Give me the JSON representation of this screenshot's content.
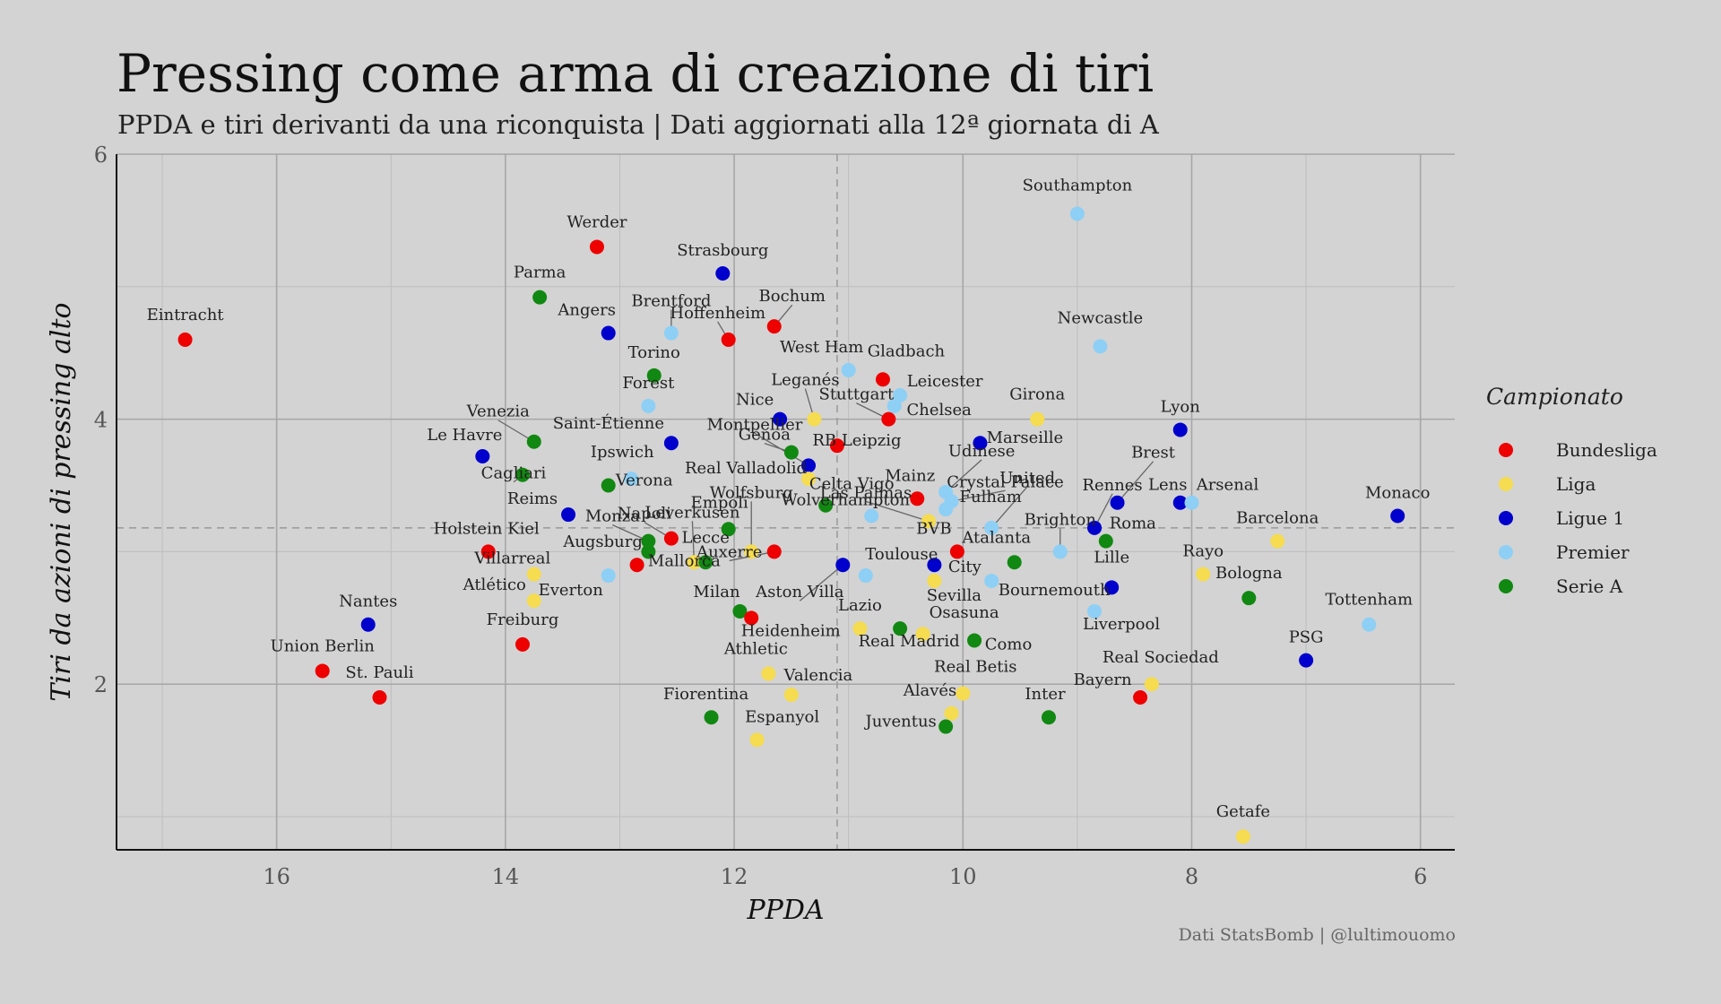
{
  "title": "Pressing come arma di creazione di tiri",
  "subtitle": "PPDA e tiri derivanti da una riconquista | Dati aggiornati alla 12ª giornata di A",
  "caption": "Dati StatsBomb | @lultimouomo",
  "legend": {
    "title": "Campionato",
    "items": [
      {
        "label": "Bundesliga",
        "color": "#ee0000"
      },
      {
        "label": "Liga",
        "color": "#f5dc50"
      },
      {
        "label": "Ligue 1",
        "color": "#0000cc"
      },
      {
        "label": "Premier",
        "color": "#8ecff5"
      },
      {
        "label": "Serie A",
        "color": "#118811"
      }
    ]
  },
  "chart_data": {
    "type": "scatter",
    "xlabel": "PPDA",
    "ylabel": "Tiri da azioni di pressing alto",
    "x_reversed": true,
    "xlim": [
      17.4,
      5.7
    ],
    "ylim": [
      0.75,
      6
    ],
    "x_ticks": [
      16,
      14,
      12,
      10,
      8,
      6
    ],
    "y_ticks": [
      2,
      4,
      6
    ],
    "reference_lines": {
      "x": 11.1,
      "y": 3.18
    },
    "grid": true,
    "legend_position": "right",
    "points": [
      {
        "team": "Eintracht",
        "league": "Bundesliga",
        "x": 16.8,
        "y": 4.6
      },
      {
        "team": "Union Berlin",
        "league": "Bundesliga",
        "x": 15.6,
        "y": 2.1
      },
      {
        "team": "St. Pauli",
        "league": "Bundesliga",
        "x": 15.1,
        "y": 1.9
      },
      {
        "team": "Nantes",
        "league": "Ligue 1",
        "x": 15.2,
        "y": 2.45
      },
      {
        "team": "Le Havre",
        "league": "Ligue 1",
        "x": 14.2,
        "y": 3.72
      },
      {
        "team": "Holstein Kiel",
        "league": "Bundesliga",
        "x": 14.15,
        "y": 3.0
      },
      {
        "team": "Freiburg",
        "league": "Bundesliga",
        "x": 13.85,
        "y": 2.3
      },
      {
        "team": "Villarreal",
        "league": "Liga",
        "x": 13.75,
        "y": 2.83
      },
      {
        "team": "Atlético",
        "league": "Liga",
        "x": 13.75,
        "y": 2.63
      },
      {
        "team": "Cagliari",
        "league": "Serie A",
        "x": 13.85,
        "y": 3.58
      },
      {
        "team": "Venezia",
        "league": "Serie A",
        "x": 13.75,
        "y": 3.83
      },
      {
        "team": "Parma",
        "league": "Serie A",
        "x": 13.7,
        "y": 4.92
      },
      {
        "team": "Reims",
        "league": "Ligue 1",
        "x": 13.45,
        "y": 3.28
      },
      {
        "team": "Werder",
        "league": "Bundesliga",
        "x": 13.2,
        "y": 5.3
      },
      {
        "team": "Angers",
        "league": "Ligue 1",
        "x": 13.1,
        "y": 4.65
      },
      {
        "team": "Verona",
        "league": "Serie A",
        "x": 13.1,
        "y": 3.5
      },
      {
        "team": "Everton",
        "league": "Premier",
        "x": 13.1,
        "y": 2.82
      },
      {
        "team": "Ipswich",
        "league": "Premier",
        "x": 12.9,
        "y": 3.55
      },
      {
        "team": "Augsburg",
        "league": "Bundesliga",
        "x": 12.85,
        "y": 2.9
      },
      {
        "team": "Mallorca",
        "league": "Serie A",
        "x": 12.75,
        "y": 3.0
      },
      {
        "team": "Monza",
        "league": "Serie A",
        "x": 12.75,
        "y": 3.08
      },
      {
        "team": "Forest",
        "league": "Premier",
        "x": 12.75,
        "y": 4.1
      },
      {
        "team": "Torino",
        "league": "Serie A",
        "x": 12.7,
        "y": 4.33
      },
      {
        "team": "Napoli",
        "league": "Bundesliga",
        "x": 12.55,
        "y": 3.1
      },
      {
        "team": "Brentford",
        "league": "Premier",
        "x": 12.55,
        "y": 4.65
      },
      {
        "team": "Saint-Étienne",
        "league": "Ligue 1",
        "x": 12.55,
        "y": 3.82
      },
      {
        "team": "Leverkusen",
        "league": "Liga",
        "x": 12.35,
        "y": 2.92
      },
      {
        "team": "Lecce",
        "league": "Serie A",
        "x": 12.25,
        "y": 2.92
      },
      {
        "team": "Strasbourg",
        "league": "Ligue 1",
        "x": 12.1,
        "y": 5.1
      },
      {
        "team": "Hoffenheim",
        "league": "Bundesliga",
        "x": 12.05,
        "y": 4.6
      },
      {
        "team": "Empoli",
        "league": "Serie A",
        "x": 12.05,
        "y": 3.17
      },
      {
        "team": "Milan",
        "league": "Serie A",
        "x": 11.95,
        "y": 2.55
      },
      {
        "team": "Heidenheim",
        "league": "Bundesliga",
        "x": 11.85,
        "y": 2.5
      },
      {
        "team": "Fiorentina",
        "league": "Serie A",
        "x": 12.2,
        "y": 1.75
      },
      {
        "team": "Athletic",
        "league": "Liga",
        "x": 11.7,
        "y": 2.08
      },
      {
        "team": "Espanyol",
        "league": "Liga",
        "x": 11.8,
        "y": 1.58
      },
      {
        "team": "Wolfsburg",
        "league": "Liga",
        "x": 11.85,
        "y": 3.0
      },
      {
        "team": "Auxerre",
        "league": "Bundesliga",
        "x": 11.65,
        "y": 3.0
      },
      {
        "team": "Valencia",
        "league": "Liga",
        "x": 11.5,
        "y": 1.92
      },
      {
        "team": "Bochum",
        "league": "Bundesliga",
        "x": 11.65,
        "y": 4.7
      },
      {
        "team": "Nice",
        "league": "Ligue 1",
        "x": 11.6,
        "y": 4.0
      },
      {
        "team": "Genoa",
        "league": "Serie A",
        "x": 11.5,
        "y": 3.75
      },
      {
        "team": "Montpellier",
        "league": "Ligue 1",
        "x": 11.35,
        "y": 3.65
      },
      {
        "team": "Real Valladolid",
        "league": "Liga",
        "x": 11.35,
        "y": 3.55
      },
      {
        "team": "Leganés",
        "league": "Liga",
        "x": 11.3,
        "y": 4.0
      },
      {
        "team": "Wolverhampton",
        "league": "Serie A",
        "x": 11.2,
        "y": 3.35
      },
      {
        "team": "Aston Villa",
        "league": "Ligue 1",
        "x": 11.05,
        "y": 2.9
      },
      {
        "team": "RB Leipzig",
        "league": "Bundesliga",
        "x": 11.1,
        "y": 3.8
      },
      {
        "team": "West Ham",
        "league": "Premier",
        "x": 11.0,
        "y": 4.37
      },
      {
        "team": "Toulouse",
        "league": "Premier",
        "x": 10.85,
        "y": 2.82
      },
      {
        "team": "Lazio",
        "league": "Liga",
        "x": 10.9,
        "y": 2.42
      },
      {
        "team": "Celta Vigo",
        "league": "Premier",
        "x": 10.8,
        "y": 3.27
      },
      {
        "team": "Gladbach",
        "league": "Bundesliga",
        "x": 10.7,
        "y": 4.3
      },
      {
        "team": "Stuttgart",
        "league": "Bundesliga",
        "x": 10.65,
        "y": 4.0
      },
      {
        "team": "Real Madrid",
        "league": "Serie A",
        "x": 10.55,
        "y": 2.42
      },
      {
        "team": "Leicester",
        "league": "Premier",
        "x": 10.55,
        "y": 4.18
      },
      {
        "team": "Chelsea",
        "league": "Premier",
        "x": 10.6,
        "y": 4.1
      },
      {
        "team": "Osasuna",
        "league": "Liga",
        "x": 10.35,
        "y": 2.38
      },
      {
        "team": "Mainz",
        "league": "Bundesliga",
        "x": 10.4,
        "y": 3.4
      },
      {
        "team": "Las Palmas",
        "league": "Liga",
        "x": 10.3,
        "y": 3.23
      },
      {
        "team": "City",
        "league": "Ligue 1",
        "x": 10.25,
        "y": 2.9
      },
      {
        "team": "Sevilla",
        "league": "Liga",
        "x": 10.25,
        "y": 2.78
      },
      {
        "team": "Udinese",
        "league": "Premier",
        "x": 10.15,
        "y": 3.45
      },
      {
        "team": "Crystal Palace",
        "league": "Premier",
        "x": 10.1,
        "y": 3.38
      },
      {
        "team": "Fulham",
        "league": "Premier",
        "x": 10.15,
        "y": 3.32
      },
      {
        "team": "BVB",
        "league": "Bundesliga",
        "x": 10.05,
        "y": 3.0
      },
      {
        "team": "Alavés",
        "league": "Liga",
        "x": 10.1,
        "y": 1.78
      },
      {
        "team": "Real Betis",
        "league": "Liga",
        "x": 10.0,
        "y": 1.93
      },
      {
        "team": "Juventus",
        "league": "Serie A",
        "x": 10.15,
        "y": 1.68
      },
      {
        "team": "Como",
        "league": "Serie A",
        "x": 9.9,
        "y": 2.33
      },
      {
        "team": "Marseille",
        "league": "Ligue 1",
        "x": 9.85,
        "y": 3.82
      },
      {
        "team": "United",
        "league": "Premier",
        "x": 9.75,
        "y": 3.18
      },
      {
        "team": "Bournemouth",
        "league": "Premier",
        "x": 9.75,
        "y": 2.78
      },
      {
        "team": "Atalanta",
        "league": "Serie A",
        "x": 9.55,
        "y": 2.92
      },
      {
        "team": "Girona",
        "league": "Liga",
        "x": 9.35,
        "y": 4.0
      },
      {
        "team": "Inter",
        "league": "Serie A",
        "x": 9.25,
        "y": 1.75
      },
      {
        "team": "Brighton",
        "league": "Premier",
        "x": 9.15,
        "y": 3.0
      },
      {
        "team": "Southampton",
        "league": "Premier",
        "x": 9.0,
        "y": 5.55
      },
      {
        "team": "Rennes",
        "league": "Ligue 1",
        "x": 8.85,
        "y": 3.18
      },
      {
        "team": "Liverpool",
        "league": "Premier",
        "x": 8.85,
        "y": 2.55
      },
      {
        "team": "Newcastle",
        "league": "Premier",
        "x": 8.8,
        "y": 4.55
      },
      {
        "team": "Roma",
        "league": "Serie A",
        "x": 8.75,
        "y": 3.08
      },
      {
        "team": "Lille",
        "league": "Ligue 1",
        "x": 8.7,
        "y": 2.73
      },
      {
        "team": "Brest",
        "league": "Ligue 1",
        "x": 8.65,
        "y": 3.37
      },
      {
        "team": "Bayern",
        "league": "Bundesliga",
        "x": 8.45,
        "y": 1.9
      },
      {
        "team": "Real Sociedad",
        "league": "Liga",
        "x": 8.35,
        "y": 2.0
      },
      {
        "team": "Lens",
        "league": "Ligue 1",
        "x": 8.1,
        "y": 3.37
      },
      {
        "team": "Arsenal",
        "league": "Premier",
        "x": 8.0,
        "y": 3.37
      },
      {
        "team": "Lyon",
        "league": "Ligue 1",
        "x": 8.1,
        "y": 3.92
      },
      {
        "team": "Rayo",
        "league": "Liga",
        "x": 7.9,
        "y": 2.83
      },
      {
        "team": "Bologna",
        "league": "Serie A",
        "x": 7.5,
        "y": 2.65
      },
      {
        "team": "Getafe",
        "league": "Liga",
        "x": 7.55,
        "y": 0.85
      },
      {
        "team": "Barcelona",
        "league": "Liga",
        "x": 7.25,
        "y": 3.08
      },
      {
        "team": "PSG",
        "league": "Ligue 1",
        "x": 7.0,
        "y": 2.18
      },
      {
        "team": "Tottenham",
        "league": "Premier",
        "x": 6.45,
        "y": 2.45
      },
      {
        "team": "Monaco",
        "league": "Ligue 1",
        "x": 6.2,
        "y": 3.27
      }
    ]
  }
}
